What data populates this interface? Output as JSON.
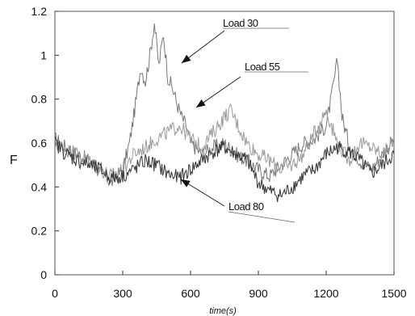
{
  "chart_data": {
    "type": "line",
    "xlabel": "time(s)",
    "ylabel": "F",
    "xlim": [
      0,
      1500
    ],
    "ylim": [
      0,
      1.2
    ],
    "x_ticks": [
      "0",
      "300",
      "600",
      "900",
      "1200",
      "1500"
    ],
    "y_ticks": [
      "0",
      "0.2",
      "0.4",
      "0.6",
      "0.8",
      "1",
      "1.2"
    ],
    "grid": false,
    "legend": "none",
    "series": [
      {
        "name": "Load 30",
        "x": [
          0,
          50,
          100,
          150,
          200,
          250,
          300,
          330,
          360,
          380,
          400,
          420,
          440,
          460,
          480,
          500,
          520,
          540,
          560,
          580,
          600,
          650,
          700,
          750,
          800,
          850,
          900,
          950,
          1000,
          1050,
          1100,
          1150,
          1200,
          1230,
          1250,
          1270,
          1300,
          1350,
          1400,
          1450,
          1500
        ],
        "y": [
          0.62,
          0.58,
          0.55,
          0.52,
          0.47,
          0.42,
          0.48,
          0.6,
          0.8,
          0.95,
          0.88,
          1.0,
          1.15,
          0.95,
          1.1,
          0.9,
          0.85,
          0.78,
          0.72,
          0.68,
          0.6,
          0.55,
          0.58,
          0.6,
          0.55,
          0.52,
          0.48,
          0.45,
          0.5,
          0.55,
          0.6,
          0.62,
          0.68,
          0.85,
          0.98,
          0.72,
          0.6,
          0.52,
          0.48,
          0.55,
          0.62
        ]
      },
      {
        "name": "Load 55",
        "x": [
          0,
          50,
          100,
          150,
          200,
          250,
          300,
          350,
          400,
          450,
          500,
          550,
          600,
          650,
          700,
          750,
          780,
          800,
          850,
          900,
          950,
          1000,
          1050,
          1100,
          1150,
          1200,
          1250,
          1300,
          1350,
          1400,
          1450,
          1500
        ],
        "y": [
          0.6,
          0.57,
          0.55,
          0.52,
          0.48,
          0.45,
          0.48,
          0.55,
          0.58,
          0.62,
          0.65,
          0.68,
          0.62,
          0.58,
          0.65,
          0.72,
          0.75,
          0.7,
          0.6,
          0.55,
          0.52,
          0.48,
          0.5,
          0.55,
          0.65,
          0.75,
          0.6,
          0.52,
          0.6,
          0.58,
          0.55,
          0.6
        ]
      },
      {
        "name": "Load 80",
        "x": [
          0,
          50,
          100,
          150,
          200,
          250,
          300,
          350,
          400,
          450,
          500,
          550,
          600,
          650,
          700,
          750,
          800,
          850,
          900,
          950,
          1000,
          1050,
          1100,
          1150,
          1200,
          1250,
          1300,
          1350,
          1400,
          1450,
          1500
        ],
        "y": [
          0.6,
          0.55,
          0.52,
          0.5,
          0.48,
          0.44,
          0.45,
          0.48,
          0.52,
          0.5,
          0.46,
          0.44,
          0.48,
          0.52,
          0.56,
          0.58,
          0.55,
          0.52,
          0.42,
          0.38,
          0.36,
          0.4,
          0.45,
          0.48,
          0.55,
          0.58,
          0.56,
          0.52,
          0.46,
          0.5,
          0.55
        ]
      }
    ],
    "annotations": [
      {
        "text": "Load 30",
        "series": "Load 30"
      },
      {
        "text": "Load 55",
        "series": "Load 55"
      },
      {
        "text": "Load 80",
        "series": "Load 80"
      }
    ]
  }
}
